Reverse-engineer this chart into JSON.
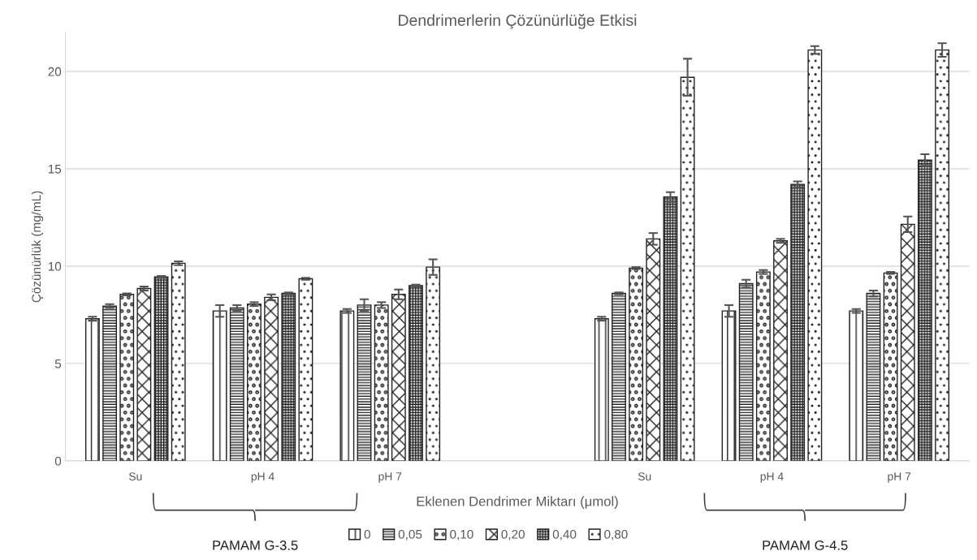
{
  "chart_data": {
    "type": "bar",
    "title": "Dendrimerlerin Çözünürlüğe Etkisi",
    "xlabel": "Eklenen Dendrimer Miktarı (μmol)",
    "ylabel": "Çözünürlük (mg/mL)",
    "categories": [
      "Su",
      "pH 4",
      "pH 7",
      null,
      "Su",
      "pH 4",
      "pH 7"
    ],
    "series": [
      {
        "name": "0",
        "color": "#222222",
        "values": [
          7.3,
          7.7,
          7.7,
          null,
          7.3,
          7.7,
          7.7
        ],
        "errors": [
          0.1,
          0.3,
          0.1,
          null,
          0.1,
          0.3,
          0.1
        ]
      },
      {
        "name": "0,05",
        "color": "#222222",
        "values": [
          7.95,
          7.85,
          8.0,
          null,
          8.6,
          9.1,
          8.6
        ],
        "errors": [
          0.1,
          0.15,
          0.3,
          null,
          0.05,
          0.2,
          0.15
        ]
      },
      {
        "name": "0,10",
        "color": "#222222",
        "values": [
          8.55,
          8.05,
          8.0,
          null,
          9.9,
          9.7,
          9.65
        ],
        "errors": [
          0.05,
          0.1,
          0.15,
          null,
          0.05,
          0.1,
          0.05
        ]
      },
      {
        "name": "0,20",
        "color": "#222222",
        "values": [
          8.85,
          8.4,
          8.55,
          null,
          11.4,
          11.3,
          12.15
        ],
        "errors": [
          0.1,
          0.15,
          0.25,
          null,
          0.3,
          0.1,
          0.4
        ]
      },
      {
        "name": "0,40",
        "color": "#222222",
        "values": [
          9.45,
          8.6,
          9.0,
          null,
          13.55,
          14.2,
          15.45
        ],
        "errors": [
          0.05,
          0.05,
          0.05,
          null,
          0.25,
          0.15,
          0.3
        ]
      },
      {
        "name": "0,80",
        "color": "#222222",
        "values": [
          10.15,
          9.35,
          9.95,
          null,
          19.7,
          21.1,
          21.1
        ],
        "errors": [
          0.1,
          0.05,
          0.4,
          null,
          0.95,
          0.2,
          0.35
        ]
      }
    ],
    "annotations": [
      "PAMAM G-3.5",
      "PAMAM G-4.5"
    ],
    "ylim": [
      0,
      22
    ],
    "yticks": [
      0,
      5,
      10,
      15,
      20
    ],
    "grid": "y",
    "legend": "bottom"
  }
}
